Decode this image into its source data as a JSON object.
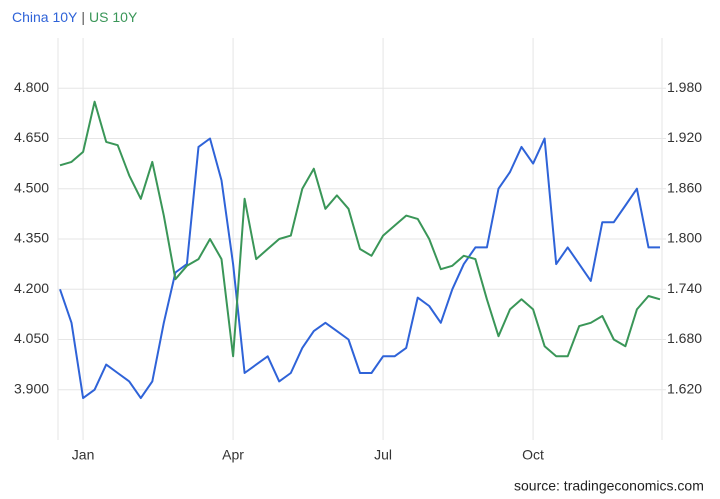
{
  "chart_data": {
    "type": "line",
    "legend_separator": "|",
    "source": "source: tradingeconomics.com",
    "categories": [
      null,
      null,
      "Jan",
      null,
      null,
      null,
      null,
      null,
      null,
      null,
      null,
      null,
      null,
      null,
      null,
      "Apr",
      null,
      null,
      null,
      null,
      null,
      null,
      null,
      null,
      null,
      null,
      null,
      null,
      "Jul",
      null,
      null,
      null,
      null,
      null,
      null,
      null,
      null,
      null,
      null,
      null,
      null,
      "Oct",
      null,
      null,
      null,
      null,
      null,
      null,
      null,
      null,
      null,
      null,
      null
    ],
    "series": [
      {
        "name": "China 10Y",
        "color": "#2f63d8",
        "axis": "y2",
        "values": [
          1.74,
          1.7,
          1.61,
          1.62,
          1.65,
          1.64,
          1.63,
          1.61,
          1.63,
          1.7,
          1.76,
          1.77,
          1.91,
          1.92,
          1.87,
          1.77,
          1.64,
          1.65,
          1.66,
          1.63,
          1.64,
          1.67,
          1.69,
          1.7,
          1.69,
          1.68,
          1.64,
          1.64,
          1.66,
          1.66,
          1.67,
          1.73,
          1.72,
          1.7,
          1.74,
          1.77,
          1.79,
          1.79,
          1.86,
          1.88,
          1.91,
          1.89,
          1.92,
          1.77,
          1.79,
          1.77,
          1.75,
          1.82,
          1.82,
          1.84,
          1.86,
          1.79,
          1.79
        ]
      },
      {
        "name": "US 10Y",
        "color": "#3a9658",
        "values": [
          4.57,
          4.58,
          4.61,
          4.76,
          4.64,
          4.63,
          4.54,
          4.47,
          4.58,
          4.42,
          4.23,
          4.27,
          4.29,
          4.35,
          4.29,
          4.0,
          4.47,
          4.29,
          4.32,
          4.35,
          4.36,
          4.5,
          4.56,
          4.44,
          4.48,
          4.44,
          4.32,
          4.3,
          4.36,
          4.39,
          4.42,
          4.41,
          4.35,
          4.26,
          4.27,
          4.3,
          4.29,
          4.17,
          4.06,
          4.14,
          4.17,
          4.14,
          4.03,
          4.0,
          4.0,
          4.09,
          4.1,
          4.12,
          4.05,
          4.03,
          4.14,
          4.18,
          4.17
        ]
      }
    ],
    "ylim": [
      3.75,
      4.95
    ],
    "yticks": [
      {
        "value": 3.9,
        "label": "3.900"
      },
      {
        "value": 4.05,
        "label": "4.050"
      },
      {
        "value": 4.2,
        "label": "4.200"
      },
      {
        "value": 4.35,
        "label": "4.350"
      },
      {
        "value": 4.5,
        "label": "4.500"
      },
      {
        "value": 4.65,
        "label": "4.650"
      },
      {
        "value": 4.8,
        "label": "4.800"
      }
    ],
    "y2lim": [
      1.56,
      2.04
    ],
    "y2ticks": [
      {
        "value": 1.62,
        "label": "1.620"
      },
      {
        "value": 1.68,
        "label": "1.680"
      },
      {
        "value": 1.74,
        "label": "1.740"
      },
      {
        "value": 1.8,
        "label": "1.800"
      },
      {
        "value": 1.86,
        "label": "1.860"
      },
      {
        "value": 1.92,
        "label": "1.920"
      },
      {
        "value": 1.98,
        "label": "1.980"
      }
    ],
    "grid": true
  }
}
